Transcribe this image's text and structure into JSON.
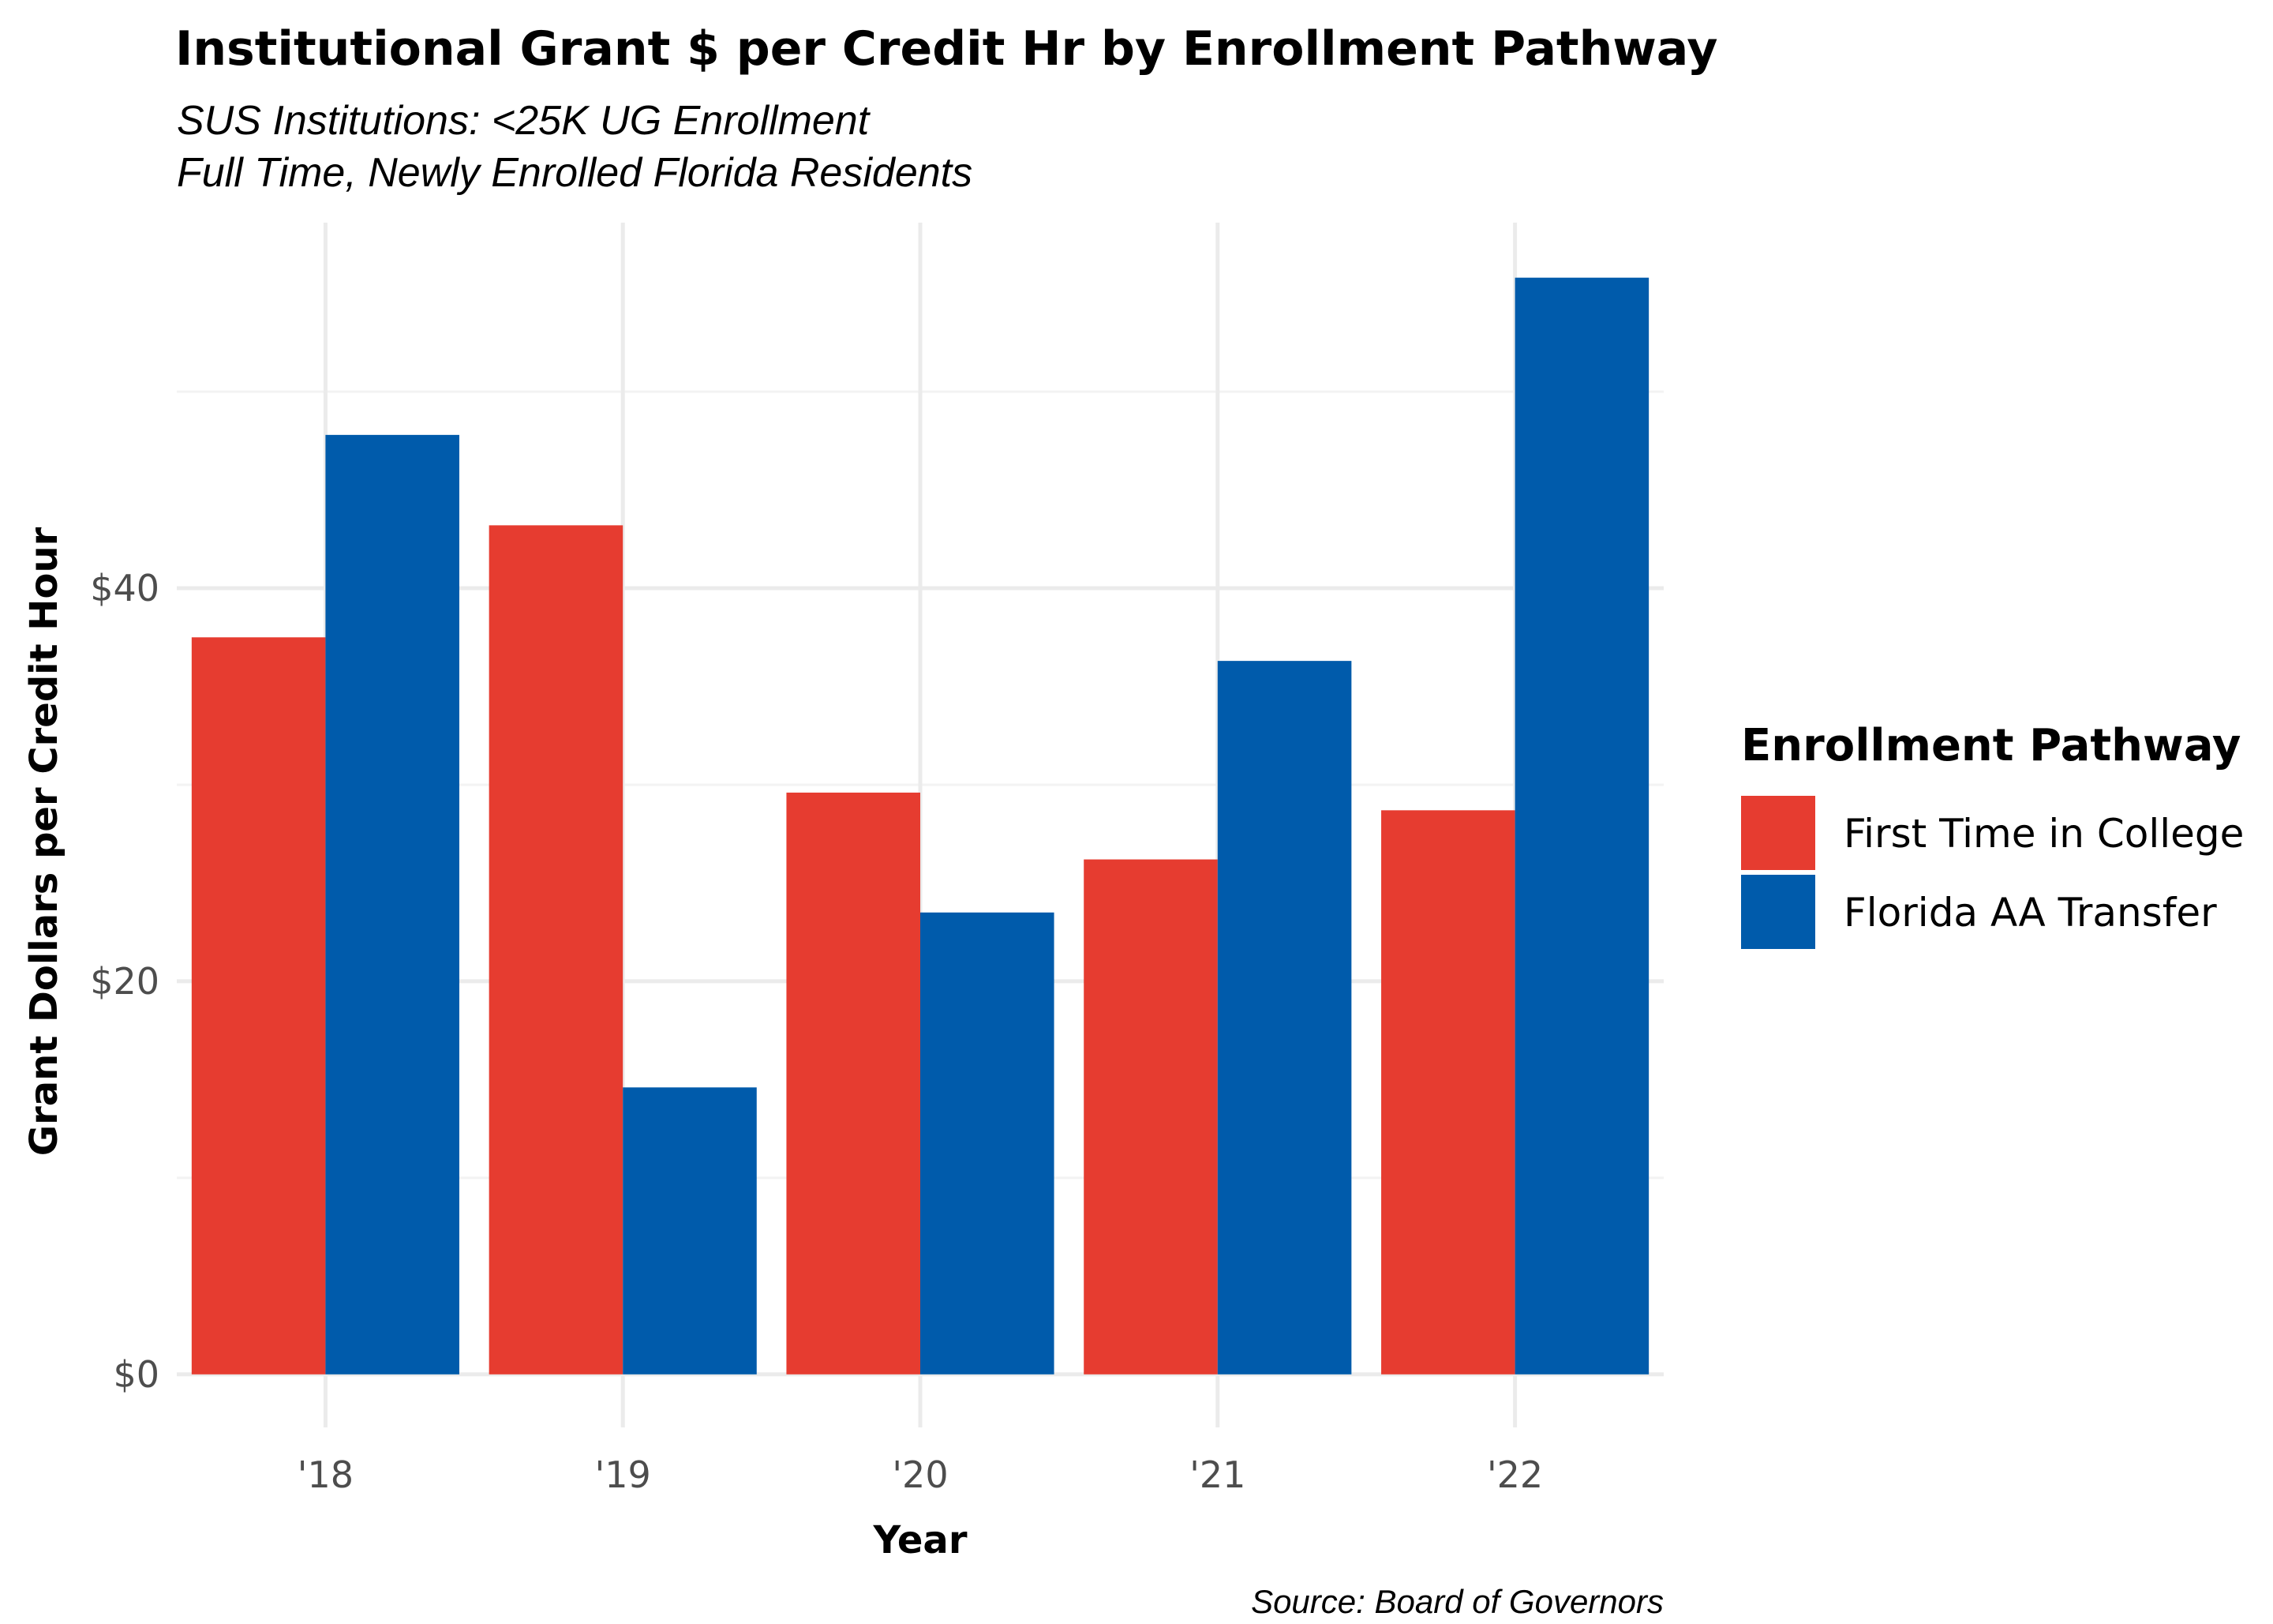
{
  "chart_data": {
    "type": "bar",
    "title": "Institutional Grant $ per Credit Hr by Enrollment Pathway",
    "subtitle_lines": [
      "SUS Institutions: <25K UG Enrollment",
      "Full Time, Newly Enrolled Florida Residents"
    ],
    "xlabel": "Year",
    "ylabel": "Grant Dollars per Credit Hour",
    "caption": "Source: Board of Governors",
    "categories": [
      "'18",
      "'19",
      "'20",
      "'21",
      "'22"
    ],
    "series": [
      {
        "name": "First Time in College",
        "color": "#e63c30",
        "values": [
          37.5,
          43.2,
          29.6,
          26.2,
          28.7
        ]
      },
      {
        "name": "Florida AA Transfer",
        "color": "#005bab",
        "values": [
          47.8,
          14.6,
          23.5,
          36.3,
          55.8
        ]
      }
    ],
    "ylim": [
      -2.7,
      58.6
    ],
    "yticks": [
      0,
      20,
      40
    ],
    "ytick_labels": [
      "$0",
      "$20",
      "$40"
    ],
    "legend": {
      "title": "Enrollment Pathway",
      "position": "right"
    },
    "grid": true
  }
}
